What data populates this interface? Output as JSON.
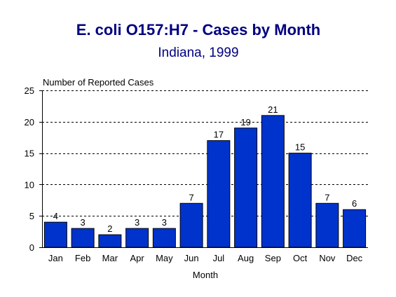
{
  "chart_data": {
    "type": "bar",
    "title": "E. coli O157:H7 - Cases by Month",
    "subtitle": "Indiana, 1999",
    "ylabel": "Number of Reported Cases",
    "xlabel": "Month",
    "categories": [
      "Jan",
      "Feb",
      "Mar",
      "Apr",
      "May",
      "Jun",
      "Jul",
      "Aug",
      "Sep",
      "Oct",
      "Nov",
      "Dec"
    ],
    "values": [
      4,
      3,
      2,
      3,
      3,
      7,
      17,
      19,
      21,
      15,
      7,
      6
    ],
    "data_labels": [
      "4",
      "3",
      "2",
      "3",
      "3",
      "7",
      "17",
      "19",
      "21",
      "15",
      "7",
      "6"
    ],
    "ylim": [
      0,
      25
    ],
    "yticks": [
      0,
      5,
      10,
      15,
      20,
      25
    ],
    "ytick_labels": [
      "0",
      "5",
      "10",
      "15",
      "20",
      "25"
    ],
    "grid": "horizontal dashed",
    "legend": "none"
  },
  "colors": {
    "bar_fill": "#0033cc",
    "bar_stroke": "#000000",
    "title": "#000080",
    "gridline": "#000000",
    "axis": "#000000"
  }
}
